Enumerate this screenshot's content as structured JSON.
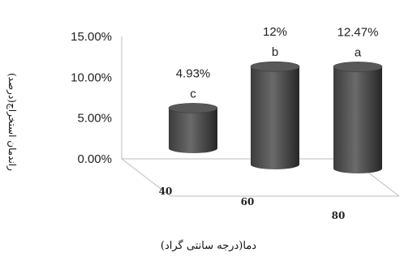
{
  "chart_data": {
    "type": "bar",
    "categories": [
      "40",
      "60",
      "80"
    ],
    "values": [
      4.93,
      12,
      12.47
    ],
    "value_labels": [
      "4.93%",
      "12%",
      "12.47%"
    ],
    "group_letters": [
      "c",
      "b",
      "a"
    ],
    "yticks": [
      "15.00%",
      "10.00%",
      "5.00%",
      "0.00%"
    ],
    "ylim": [
      0,
      15
    ],
    "xlabel": "دما(درجه سانتی گراد)",
    "ylabel": "راندمان استخراج(درصد)",
    "bar_color": "#4d4d4d",
    "style": "3d-cylinder"
  }
}
